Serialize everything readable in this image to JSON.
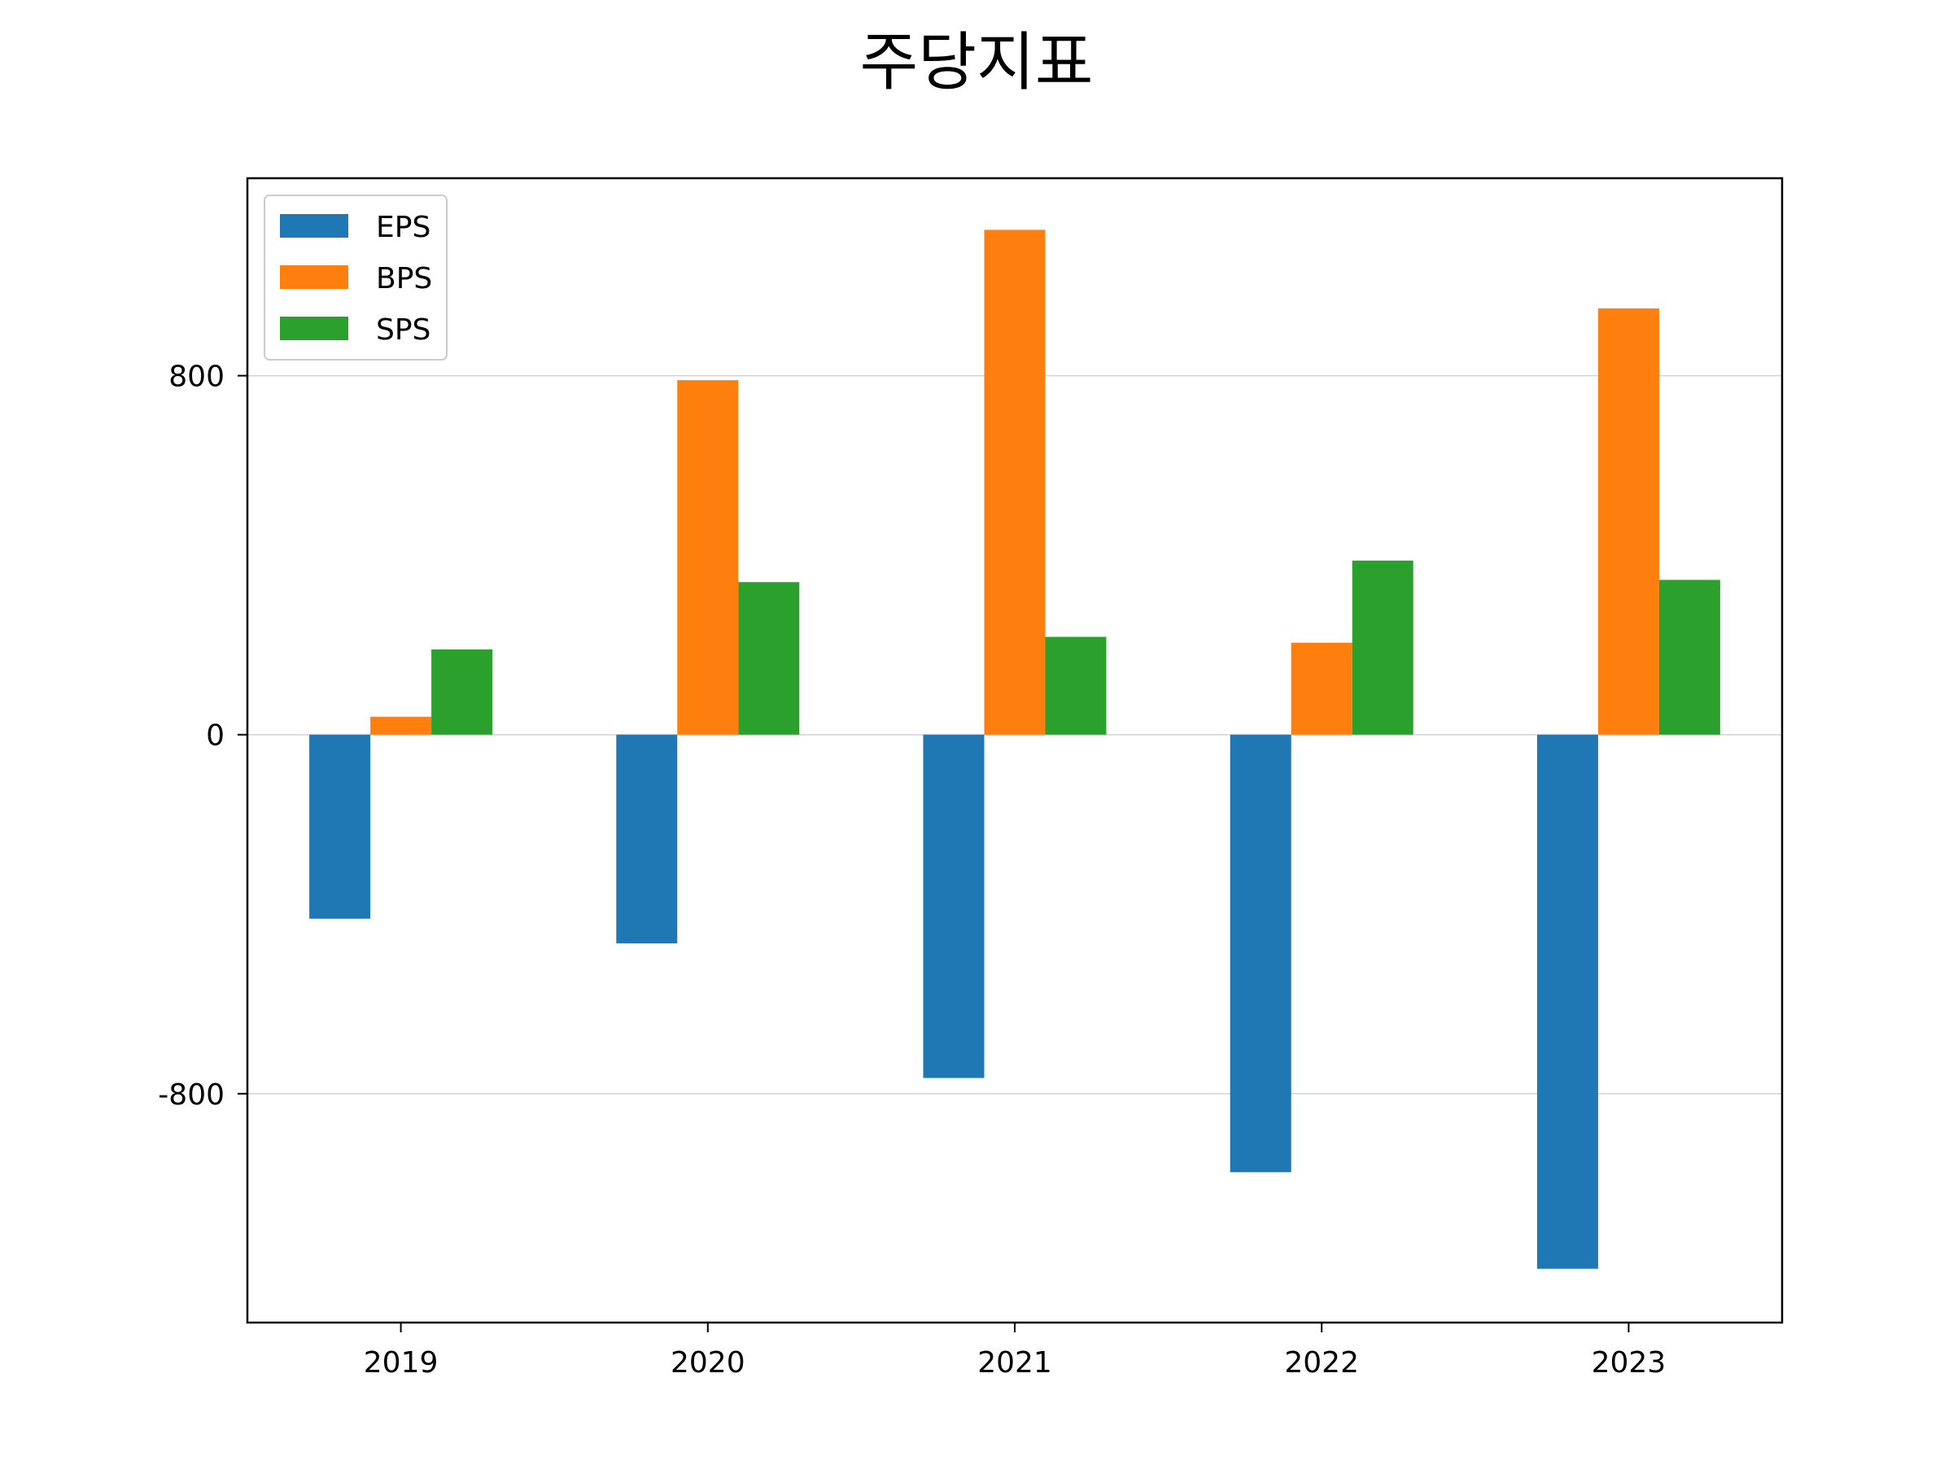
{
  "chart_data": {
    "type": "bar",
    "title": "주당지표",
    "categories": [
      "2019",
      "2020",
      "2021",
      "2022",
      "2023"
    ],
    "series": [
      {
        "name": "EPS",
        "color": "#1f77b4",
        "values": [
          -410,
          -465,
          -765,
          -975,
          -1190
        ]
      },
      {
        "name": "BPS",
        "color": "#ff7f0e",
        "values": [
          40,
          790,
          1125,
          205,
          950
        ]
      },
      {
        "name": "SPS",
        "color": "#2ca02c",
        "values": [
          190,
          340,
          218,
          388,
          345
        ]
      }
    ],
    "yticks": [
      -800,
      0,
      800
    ],
    "ytick_labels": [
      "-800",
      "0",
      "800"
    ],
    "ylim": [
      -1310,
      1240
    ],
    "grid": "y",
    "legend": "top-left"
  }
}
